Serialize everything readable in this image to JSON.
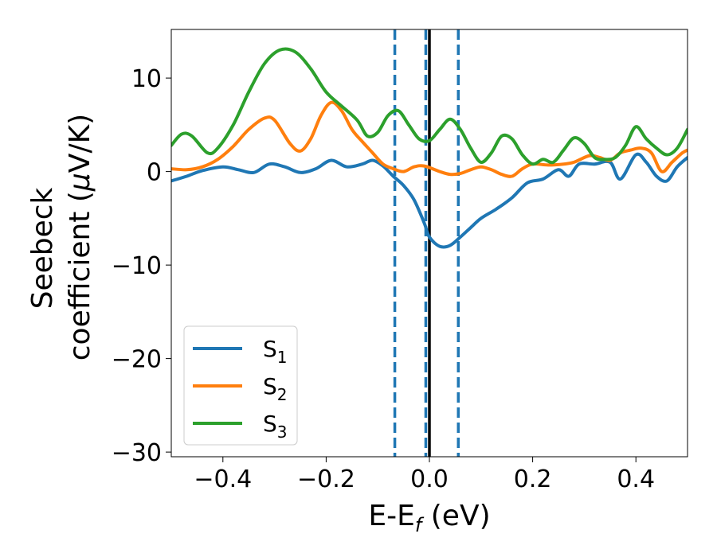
{
  "chart_data": {
    "type": "line",
    "title": "",
    "xlabel": "E-E",
    "xlabel_sub": "f",
    "xlabel_unit": " (eV)",
    "ylabel_line1": "Seebeck",
    "ylabel_line2": "coefficient  (",
    "ylabel_mu": "μ",
    "ylabel_unit": "V/K)",
    "xlim": [
      -0.5,
      0.5
    ],
    "ylim": [
      -30.5,
      15.2
    ],
    "xticks": [
      -0.4,
      -0.2,
      0.0,
      0.2,
      0.4
    ],
    "xtick_labels": [
      "−0.4",
      "−0.2",
      "0.0",
      "0.2",
      "0.4"
    ],
    "yticks": [
      -30,
      -20,
      -10,
      0,
      10
    ],
    "ytick_labels": [
      "−30",
      "−20",
      "−10",
      "0",
      "10"
    ],
    "grid": false,
    "legend_position": "lower-left",
    "vlines": [
      {
        "x": -0.067,
        "style": "dashed",
        "color": "#1f77b4"
      },
      {
        "x": -0.007,
        "style": "dashed",
        "color": "#1f77b4"
      },
      {
        "x": 0.056,
        "style": "dashed",
        "color": "#1f77b4"
      },
      {
        "x": 0.0,
        "style": "solid",
        "color": "#000000"
      }
    ],
    "series": [
      {
        "name": "S",
        "sub": "1",
        "color": "#1f77b4",
        "points": [
          [
            -0.5,
            -1.0
          ],
          [
            -0.47,
            -0.5
          ],
          [
            -0.44,
            0.1
          ],
          [
            -0.4,
            0.5
          ],
          [
            -0.37,
            0.2
          ],
          [
            -0.34,
            -0.1
          ],
          [
            -0.31,
            0.8
          ],
          [
            -0.28,
            0.5
          ],
          [
            -0.25,
            -0.1
          ],
          [
            -0.22,
            0.3
          ],
          [
            -0.19,
            1.2
          ],
          [
            -0.16,
            0.5
          ],
          [
            -0.13,
            0.8
          ],
          [
            -0.11,
            1.2
          ],
          [
            -0.09,
            0.6
          ],
          [
            -0.07,
            -0.5
          ],
          [
            -0.05,
            -1.5
          ],
          [
            -0.03,
            -3.0
          ],
          [
            -0.01,
            -5.5
          ],
          [
            0.0,
            -7.0
          ],
          [
            0.02,
            -8.0
          ],
          [
            0.04,
            -7.9
          ],
          [
            0.06,
            -7.0
          ],
          [
            0.08,
            -6.0
          ],
          [
            0.1,
            -5.0
          ],
          [
            0.13,
            -4.0
          ],
          [
            0.16,
            -2.8
          ],
          [
            0.19,
            -1.2
          ],
          [
            0.22,
            -0.8
          ],
          [
            0.25,
            0.2
          ],
          [
            0.27,
            -0.5
          ],
          [
            0.29,
            0.8
          ],
          [
            0.32,
            0.8
          ],
          [
            0.35,
            1.0
          ],
          [
            0.37,
            -0.8
          ],
          [
            0.4,
            1.8
          ],
          [
            0.42,
            1.0
          ],
          [
            0.44,
            -0.5
          ],
          [
            0.46,
            -1.0
          ],
          [
            0.48,
            0.5
          ],
          [
            0.5,
            1.5
          ]
        ]
      },
      {
        "name": "S",
        "sub": "2",
        "color": "#ff7f0e",
        "points": [
          [
            -0.5,
            0.3
          ],
          [
            -0.47,
            0.2
          ],
          [
            -0.44,
            0.5
          ],
          [
            -0.41,
            1.3
          ],
          [
            -0.38,
            2.7
          ],
          [
            -0.35,
            4.5
          ],
          [
            -0.32,
            5.7
          ],
          [
            -0.3,
            5.5
          ],
          [
            -0.27,
            3.0
          ],
          [
            -0.25,
            2.2
          ],
          [
            -0.23,
            3.5
          ],
          [
            -0.21,
            6.0
          ],
          [
            -0.19,
            7.4
          ],
          [
            -0.17,
            6.5
          ],
          [
            -0.15,
            4.5
          ],
          [
            -0.13,
            3.2
          ],
          [
            -0.11,
            2.0
          ],
          [
            -0.09,
            0.8
          ],
          [
            -0.07,
            0.3
          ],
          [
            -0.05,
            0.0
          ],
          [
            -0.03,
            0.5
          ],
          [
            -0.01,
            0.6
          ],
          [
            0.02,
            0.0
          ],
          [
            0.04,
            -0.3
          ],
          [
            0.06,
            -0.2
          ],
          [
            0.08,
            0.2
          ],
          [
            0.1,
            0.5
          ],
          [
            0.12,
            0.2
          ],
          [
            0.14,
            -0.3
          ],
          [
            0.16,
            -0.5
          ],
          [
            0.18,
            0.3
          ],
          [
            0.2,
            0.8
          ],
          [
            0.23,
            0.7
          ],
          [
            0.26,
            0.8
          ],
          [
            0.28,
            1.0
          ],
          [
            0.31,
            1.7
          ],
          [
            0.33,
            1.5
          ],
          [
            0.35,
            1.2
          ],
          [
            0.37,
            2.0
          ],
          [
            0.39,
            2.3
          ],
          [
            0.41,
            2.5
          ],
          [
            0.43,
            2.0
          ],
          [
            0.45,
            0.0
          ],
          [
            0.47,
            1.0
          ],
          [
            0.49,
            2.0
          ],
          [
            0.5,
            2.3
          ]
        ]
      },
      {
        "name": "S",
        "sub": "3",
        "color": "#2ca02c",
        "points": [
          [
            -0.5,
            2.8
          ],
          [
            -0.48,
            4.0
          ],
          [
            -0.46,
            3.8
          ],
          [
            -0.43,
            2.0
          ],
          [
            -0.41,
            2.5
          ],
          [
            -0.38,
            5.0
          ],
          [
            -0.35,
            8.5
          ],
          [
            -0.32,
            11.5
          ],
          [
            -0.29,
            13.0
          ],
          [
            -0.26,
            12.8
          ],
          [
            -0.23,
            11.0
          ],
          [
            -0.2,
            8.5
          ],
          [
            -0.17,
            7.0
          ],
          [
            -0.14,
            5.5
          ],
          [
            -0.12,
            3.8
          ],
          [
            -0.1,
            4.2
          ],
          [
            -0.08,
            6.0
          ],
          [
            -0.06,
            6.5
          ],
          [
            -0.04,
            5.0
          ],
          [
            -0.02,
            3.5
          ],
          [
            0.0,
            3.3
          ],
          [
            0.02,
            4.5
          ],
          [
            0.04,
            5.6
          ],
          [
            0.06,
            4.5
          ],
          [
            0.08,
            2.5
          ],
          [
            0.1,
            1.0
          ],
          [
            0.12,
            2.0
          ],
          [
            0.14,
            3.8
          ],
          [
            0.16,
            3.5
          ],
          [
            0.18,
            1.8
          ],
          [
            0.2,
            0.8
          ],
          [
            0.22,
            1.3
          ],
          [
            0.24,
            1.0
          ],
          [
            0.26,
            2.3
          ],
          [
            0.28,
            3.6
          ],
          [
            0.3,
            3.0
          ],
          [
            0.32,
            1.5
          ],
          [
            0.34,
            1.3
          ],
          [
            0.36,
            1.5
          ],
          [
            0.38,
            2.8
          ],
          [
            0.4,
            4.8
          ],
          [
            0.42,
            3.5
          ],
          [
            0.44,
            2.5
          ],
          [
            0.46,
            1.8
          ],
          [
            0.48,
            2.5
          ],
          [
            0.5,
            4.5
          ]
        ]
      }
    ]
  }
}
